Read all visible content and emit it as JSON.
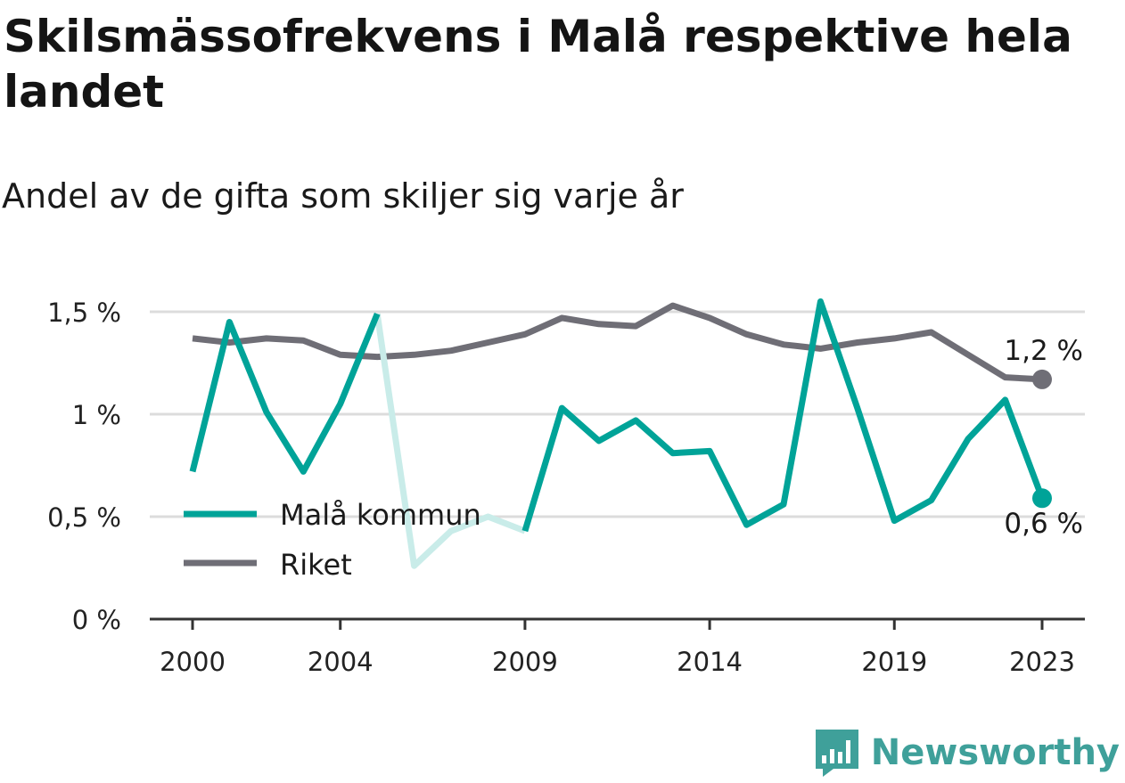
{
  "title": "Skilsmässofrekvens i Malå respektive hela landet",
  "subtitle": "Andel av de gifta som skiljer sig varje år",
  "brand": {
    "name": "Newsworthy",
    "logo_icon": "newsworthy-logo-icon"
  },
  "colors": {
    "mala": "#00a398",
    "mala_faded": "#c9ece9",
    "riket": "#6f6e76",
    "grid": "#dcdcdc",
    "axis": "#333333"
  },
  "chart_data": {
    "type": "line",
    "title": "Skilsmässofrekvens i Malå respektive hela landet",
    "subtitle": "Andel av de gifta som skiljer sig varje år",
    "xlabel": "",
    "ylabel": "",
    "xlim": [
      2000,
      2023
    ],
    "ylim": [
      0,
      1.5
    ],
    "grid": true,
    "legend_placement": "bottom-left",
    "x_ticks": [
      {
        "value": 2000,
        "label": "2000"
      },
      {
        "value": 2004,
        "label": "2004"
      },
      {
        "value": 2009,
        "label": "2009"
      },
      {
        "value": 2014,
        "label": "2014"
      },
      {
        "value": 2019,
        "label": "2019"
      },
      {
        "value": 2023,
        "label": "2023"
      }
    ],
    "y_ticks": [
      {
        "value": 0,
        "label": "0 %"
      },
      {
        "value": 0.5,
        "label": "0,5 %"
      },
      {
        "value": 1,
        "label": "1 %"
      },
      {
        "value": 1.5,
        "label": "1,5 %"
      }
    ],
    "x": [
      2000,
      2001,
      2002,
      2003,
      2004,
      2005,
      2006,
      2007,
      2008,
      2009,
      2010,
      2011,
      2012,
      2013,
      2014,
      2015,
      2016,
      2017,
      2018,
      2019,
      2020,
      2021,
      2022,
      2023
    ],
    "series": [
      {
        "name": "Malå kommun",
        "color": "#00a398",
        "faded_color": "#c9ece9",
        "faded_range": [
          2005,
          2009
        ],
        "end_label": "0,6 %",
        "values": [
          0.72,
          1.45,
          1.01,
          0.72,
          1.05,
          1.49,
          0.26,
          0.43,
          0.5,
          0.43,
          1.03,
          0.87,
          0.97,
          0.81,
          0.82,
          0.46,
          0.56,
          1.55,
          1.03,
          0.48,
          0.58,
          0.88,
          1.07,
          0.59
        ]
      },
      {
        "name": "Riket",
        "color": "#6f6e76",
        "end_label": "1,2 %",
        "values": [
          1.37,
          1.35,
          1.37,
          1.36,
          1.29,
          1.28,
          1.29,
          1.31,
          1.35,
          1.39,
          1.47,
          1.44,
          1.43,
          1.53,
          1.47,
          1.39,
          1.34,
          1.32,
          1.35,
          1.37,
          1.4,
          1.29,
          1.18,
          1.17
        ]
      }
    ]
  }
}
